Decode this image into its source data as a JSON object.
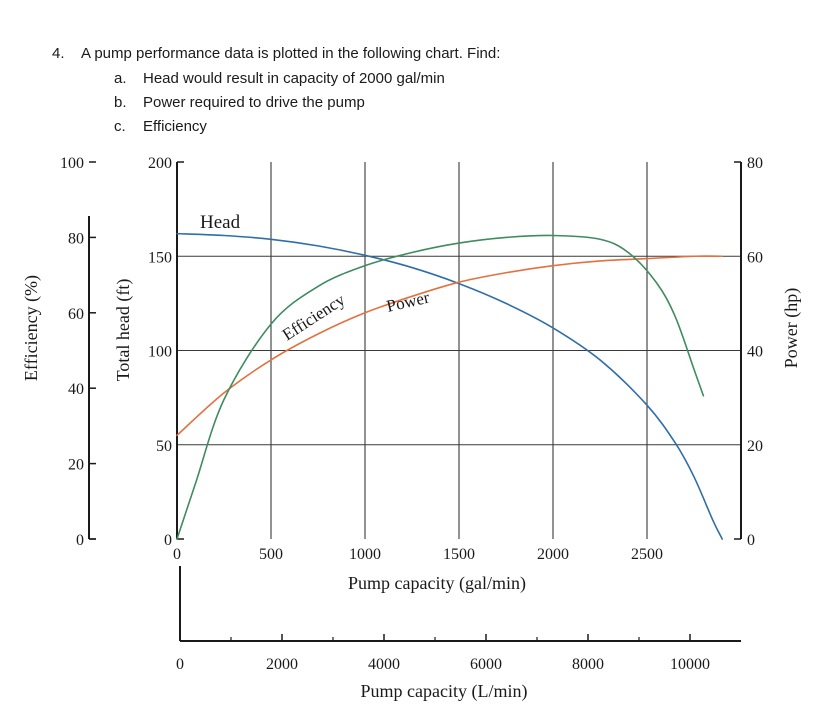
{
  "question": {
    "number": "4.",
    "prompt": "A pump performance data is plotted in the following chart. Find:",
    "items": [
      {
        "marker": "a.",
        "text": "Head would result in capacity of 2000 gal/min"
      },
      {
        "marker": "b.",
        "text": "Power required to drive the pump"
      },
      {
        "marker": "c.",
        "text": "Efficiency"
      }
    ]
  },
  "colors": {
    "head": "#2f6ea8",
    "power": "#e4703f",
    "efficiency": "#3f8c5f",
    "grid": "#3a3a3a",
    "axis": "#1a1a1a"
  },
  "chart_data": {
    "type": "line",
    "x_axis": {
      "label": "Pump capacity (gal/min)",
      "ticks": [
        "0",
        "500",
        "1000",
        "1500",
        "2000",
        "2500"
      ],
      "range": [
        0,
        3000
      ]
    },
    "x2_axis": {
      "label": "Pump capacity (L/min)",
      "ticks": [
        "0",
        "2000",
        "4000",
        "6000",
        "8000",
        "10000"
      ],
      "range": [
        0,
        11000
      ]
    },
    "y_head_axis": {
      "label": "Total head (ft)",
      "ticks": [
        "0",
        "50",
        "100",
        "150",
        "200"
      ],
      "range": [
        0,
        200
      ]
    },
    "y_efficiency_axis": {
      "label": "Efficiency (%)",
      "ticks": [
        "0",
        "20",
        "40",
        "60",
        "80",
        "100"
      ],
      "range": [
        0,
        100
      ]
    },
    "y_power_axis": {
      "label": "Power (hp)",
      "ticks": [
        "0",
        "20",
        "40",
        "60",
        "80"
      ],
      "range": [
        0,
        80
      ]
    },
    "grid": true,
    "series": [
      {
        "name": "Head",
        "axis": "head",
        "x": [
          0,
          250,
          500,
          750,
          1000,
          1250,
          1500,
          1750,
          2000,
          2250,
          2500,
          2650,
          2750,
          2850,
          2900
        ],
        "y": [
          162,
          161,
          159,
          155.5,
          150.5,
          144,
          135.5,
          125,
          112,
          95,
          71,
          51,
          33,
          10,
          0
        ]
      },
      {
        "name": "Power",
        "axis": "power",
        "x": [
          0,
          250,
          500,
          750,
          1000,
          1250,
          1500,
          1750,
          2000,
          2250,
          2500,
          2750,
          2900
        ],
        "y": [
          22,
          31,
          38,
          43.5,
          48,
          51.5,
          54.5,
          56.5,
          58,
          59,
          59.5,
          60,
          60
        ]
      },
      {
        "name": "Efficiency",
        "axis": "efficiency",
        "x": [
          0,
          100,
          250,
          500,
          750,
          1000,
          1250,
          1500,
          1750,
          2000,
          2250,
          2400,
          2550,
          2650,
          2750,
          2800
        ],
        "y": [
          0,
          15,
          37,
          57,
          67,
          72.5,
          76,
          78.5,
          80,
          80.5,
          79.5,
          76,
          68,
          59,
          45,
          38
        ]
      }
    ]
  }
}
